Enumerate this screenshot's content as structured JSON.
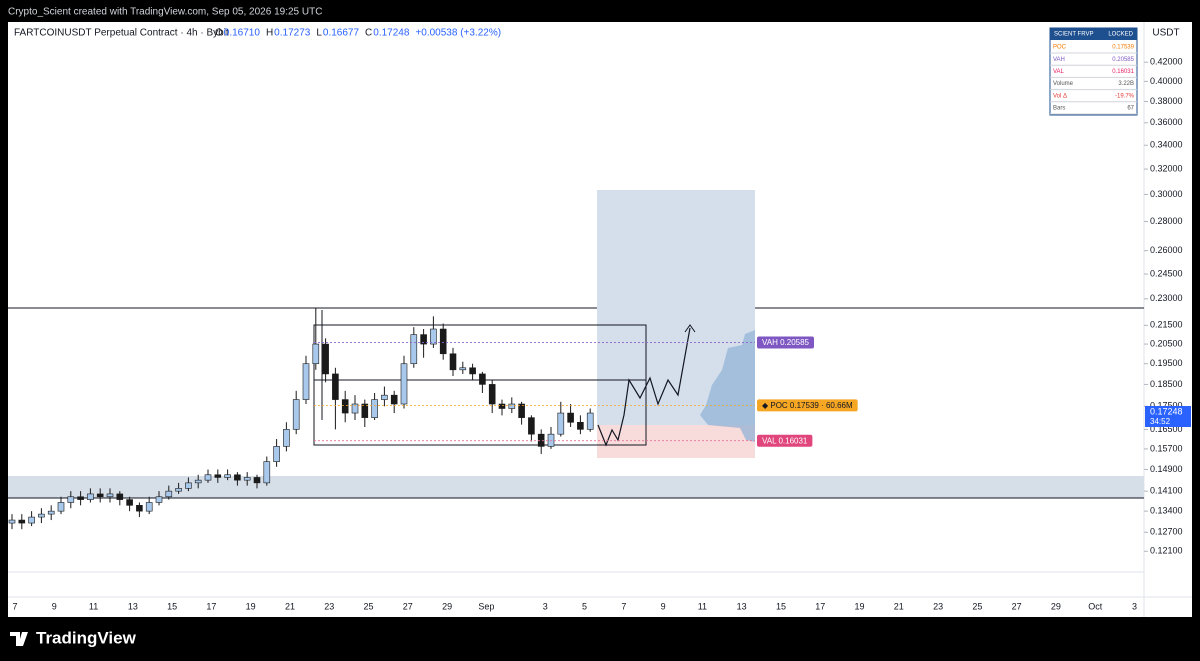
{
  "watermark": "Crypto_Scient created with TradingView.com, Sep 05, 2026 19:25 UTC",
  "header": {
    "symbol": "FARTCOINUSDT Perpetual Contract · 4h · Bybit",
    "ohlc": [
      {
        "key": "O",
        "value": "0.16710"
      },
      {
        "key": "H",
        "value": "0.17273"
      },
      {
        "key": "L",
        "value": "0.16677"
      },
      {
        "key": "C",
        "value": "0.17248"
      }
    ],
    "change": "+0.00538 (+3.22%)"
  },
  "currency": "USDT",
  "frvp_table": {
    "title": "SCIENT FRVP",
    "status": "LOCKED",
    "rows": [
      [
        "POC",
        "0.17539"
      ],
      [
        "VAH",
        "0.20585"
      ],
      [
        "VAL",
        "0.16031"
      ],
      [
        "Volume",
        "3.22B"
      ],
      [
        "Vol Δ",
        "-19.7%"
      ],
      [
        "Bars",
        "67"
      ]
    ]
  },
  "levels": {
    "vah": "VAH  0.20585",
    "poc": "◆ POC  0.17539 · 60.66M",
    "val": "VAL  0.16031"
  },
  "price_tag": {
    "price": "0.17248",
    "countdown": "34:52"
  },
  "footer": "TradingView",
  "chart_data": {
    "type": "candlestick",
    "log_scale": true,
    "ylim": [
      0.105,
      0.47
    ],
    "yticks": [
      {
        "value": 0.42,
        "label": "0.42000"
      },
      {
        "value": 0.4,
        "label": "0.40000"
      },
      {
        "value": 0.38,
        "label": "0.38000"
      },
      {
        "value": 0.36,
        "label": "0.36000"
      },
      {
        "value": 0.34,
        "label": "0.34000"
      },
      {
        "value": 0.32,
        "label": "0.32000"
      },
      {
        "value": 0.3,
        "label": "0.30000"
      },
      {
        "value": 0.28,
        "label": "0.28000"
      },
      {
        "value": 0.26,
        "label": "0.26000"
      },
      {
        "value": 0.245,
        "label": "0.24500"
      },
      {
        "value": 0.23,
        "label": "0.23000"
      },
      {
        "value": 0.215,
        "label": "0.21500"
      },
      {
        "value": 0.205,
        "label": "0.20500"
      },
      {
        "value": 0.195,
        "label": "0.19500"
      },
      {
        "value": 0.185,
        "label": "0.18500"
      },
      {
        "value": 0.175,
        "label": "0.17500"
      },
      {
        "value": 0.165,
        "label": "0.16500"
      },
      {
        "value": 0.157,
        "label": "0.15700"
      },
      {
        "value": 0.149,
        "label": "0.14900"
      },
      {
        "value": 0.141,
        "label": "0.14100"
      },
      {
        "value": 0.134,
        "label": "0.13400"
      },
      {
        "value": 0.127,
        "label": "0.12700"
      },
      {
        "value": 0.121,
        "label": "0.12100"
      }
    ],
    "xticks": [
      "7",
      "9",
      "11",
      "13",
      "15",
      "17",
      "19",
      "21",
      "23",
      "25",
      "27",
      "29",
      "Sep",
      "3",
      "5",
      "7",
      "9",
      "11",
      "13",
      "15",
      "17",
      "19",
      "21",
      "23",
      "25",
      "27",
      "29",
      "Oct",
      "3"
    ],
    "up_color": "#a8c8ec",
    "down_color": "#1a1a1a",
    "candles": [
      [
        0.13,
        0.133,
        0.128,
        0.131
      ],
      [
        0.131,
        0.133,
        0.128,
        0.13
      ],
      [
        0.13,
        0.134,
        0.129,
        0.132
      ],
      [
        0.132,
        0.135,
        0.13,
        0.133
      ],
      [
        0.133,
        0.136,
        0.131,
        0.134
      ],
      [
        0.134,
        0.139,
        0.133,
        0.137
      ],
      [
        0.137,
        0.141,
        0.135,
        0.139
      ],
      [
        0.139,
        0.141,
        0.136,
        0.138
      ],
      [
        0.138,
        0.142,
        0.137,
        0.14
      ],
      [
        0.14,
        0.142,
        0.137,
        0.139
      ],
      [
        0.139,
        0.142,
        0.137,
        0.14
      ],
      [
        0.14,
        0.141,
        0.136,
        0.138
      ],
      [
        0.138,
        0.139,
        0.134,
        0.136
      ],
      [
        0.136,
        0.137,
        0.132,
        0.134
      ],
      [
        0.134,
        0.139,
        0.133,
        0.137
      ],
      [
        0.137,
        0.141,
        0.136,
        0.139
      ],
      [
        0.139,
        0.143,
        0.138,
        0.141
      ],
      [
        0.141,
        0.144,
        0.14,
        0.142
      ],
      [
        0.142,
        0.146,
        0.141,
        0.144
      ],
      [
        0.144,
        0.147,
        0.142,
        0.145
      ],
      [
        0.145,
        0.149,
        0.144,
        0.147
      ],
      [
        0.147,
        0.149,
        0.144,
        0.146
      ],
      [
        0.146,
        0.149,
        0.145,
        0.147
      ],
      [
        0.147,
        0.148,
        0.143,
        0.145
      ],
      [
        0.145,
        0.148,
        0.143,
        0.146
      ],
      [
        0.146,
        0.147,
        0.142,
        0.144
      ],
      [
        0.144,
        0.154,
        0.143,
        0.152
      ],
      [
        0.152,
        0.161,
        0.15,
        0.158
      ],
      [
        0.158,
        0.168,
        0.156,
        0.165
      ],
      [
        0.165,
        0.182,
        0.163,
        0.178
      ],
      [
        0.178,
        0.199,
        0.176,
        0.195
      ],
      [
        0.195,
        0.225,
        0.192,
        0.205
      ],
      [
        0.205,
        0.208,
        0.186,
        0.19
      ],
      [
        0.19,
        0.193,
        0.165,
        0.178
      ],
      [
        0.178,
        0.182,
        0.168,
        0.172
      ],
      [
        0.172,
        0.18,
        0.169,
        0.176
      ],
      [
        0.176,
        0.178,
        0.166,
        0.17
      ],
      [
        0.17,
        0.181,
        0.169,
        0.178
      ],
      [
        0.178,
        0.184,
        0.175,
        0.18
      ],
      [
        0.18,
        0.182,
        0.172,
        0.176
      ],
      [
        0.176,
        0.199,
        0.174,
        0.195
      ],
      [
        0.195,
        0.214,
        0.193,
        0.21
      ],
      [
        0.21,
        0.213,
        0.198,
        0.205
      ],
      [
        0.205,
        0.22,
        0.203,
        0.213
      ],
      [
        0.213,
        0.216,
        0.197,
        0.2
      ],
      [
        0.2,
        0.203,
        0.189,
        0.192
      ],
      [
        0.192,
        0.196,
        0.19,
        0.193
      ],
      [
        0.193,
        0.195,
        0.187,
        0.19
      ],
      [
        0.19,
        0.191,
        0.181,
        0.185
      ],
      [
        0.185,
        0.187,
        0.172,
        0.176
      ],
      [
        0.176,
        0.178,
        0.171,
        0.174
      ],
      [
        0.174,
        0.179,
        0.172,
        0.176
      ],
      [
        0.176,
        0.177,
        0.167,
        0.17
      ],
      [
        0.17,
        0.171,
        0.16,
        0.163
      ],
      [
        0.163,
        0.165,
        0.155,
        0.158
      ],
      [
        0.158,
        0.166,
        0.157,
        0.163
      ],
      [
        0.163,
        0.177,
        0.162,
        0.172
      ],
      [
        0.172,
        0.176,
        0.166,
        0.168
      ],
      [
        0.168,
        0.171,
        0.163,
        0.165
      ],
      [
        0.165,
        0.174,
        0.164,
        0.172
      ]
    ]
  }
}
